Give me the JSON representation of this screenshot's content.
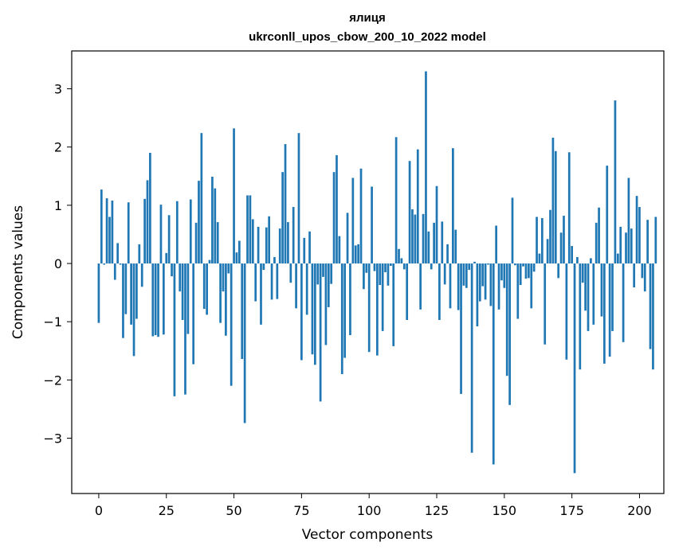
{
  "chart_data": {
    "type": "bar",
    "title": "ялиця",
    "subtitle": "ukrconll_upos_cbow_200_10_2022 model",
    "xlabel": "Vector components",
    "ylabel": "Components values",
    "xlim": [
      -10,
      209
    ],
    "ylim": [
      -3.95,
      3.65
    ],
    "xticks": [
      0,
      25,
      50,
      75,
      100,
      125,
      150,
      175,
      200
    ],
    "yticks": [
      -3,
      -2,
      -1,
      0,
      1,
      2,
      3
    ],
    "grid": false,
    "bar_color": "#1f77b4",
    "values": [
      -1.02,
      1.27,
      -0.02,
      1.12,
      0.8,
      1.08,
      -0.28,
      0.35,
      -0.02,
      -1.28,
      -0.87,
      1.05,
      -1.05,
      -1.59,
      -0.95,
      0.33,
      -0.4,
      1.11,
      1.43,
      1.9,
      -1.25,
      -1.23,
      -1.26,
      1.01,
      -1.22,
      0.18,
      0.83,
      -0.22,
      -2.28,
      1.07,
      -0.48,
      -0.97,
      -2.25,
      -1.21,
      1.1,
      -1.73,
      0.7,
      1.42,
      2.24,
      -0.78,
      -0.88,
      0.06,
      1.49,
      1.29,
      0.71,
      -1.02,
      -0.48,
      -1.24,
      -0.17,
      -2.1,
      2.32,
      0.19,
      0.39,
      -1.64,
      -2.74,
      1.17,
      1.17,
      0.76,
      -0.65,
      0.63,
      -1.05,
      -0.11,
      0.62,
      0.81,
      -0.62,
      0.11,
      -0.61,
      0.6,
      1.57,
      2.05,
      0.71,
      -0.33,
      0.97,
      -0.77,
      2.24,
      -1.66,
      0.44,
      -0.88,
      0.55,
      -1.56,
      -1.74,
      -0.36,
      -2.37,
      -0.23,
      -1.4,
      -0.75,
      -0.35,
      1.57,
      1.86,
      0.47,
      -1.9,
      -1.62,
      0.87,
      -1.23,
      1.47,
      0.31,
      0.33,
      1.63,
      -0.44,
      -0.16,
      -1.52,
      1.32,
      -0.13,
      -1.58,
      -0.37,
      -1.16,
      -0.15,
      -0.38,
      -0.04,
      -1.42,
      2.17,
      0.25,
      0.09,
      -0.1,
      -0.97,
      1.76,
      0.93,
      0.84,
      1.96,
      -0.79,
      0.85,
      3.3,
      0.55,
      -0.1,
      0.7,
      1.33,
      -0.97,
      0.72,
      -0.36,
      0.33,
      -0.77,
      1.98,
      0.58,
      -0.8,
      -2.24,
      -0.38,
      -0.42,
      -0.11,
      -3.25,
      0.03,
      -1.08,
      -0.65,
      -0.39,
      -0.62,
      -0.02,
      -0.73,
      -3.45,
      0.65,
      -0.79,
      -0.29,
      -0.42,
      -1.93,
      -2.43,
      1.13,
      -0.03,
      -0.95,
      -0.37,
      -0.05,
      -0.26,
      -0.25,
      -0.77,
      -0.14,
      0.8,
      0.17,
      0.78,
      -1.39,
      0.42,
      0.92,
      2.16,
      1.93,
      -0.25,
      0.53,
      0.82,
      -1.65,
      1.91,
      0.3,
      -3.6,
      0.11,
      -1.82,
      -0.33,
      -0.81,
      -1.16,
      0.09,
      -1.05,
      0.7,
      0.96,
      -0.91,
      -1.72,
      1.68,
      -1.6,
      -1.16,
      2.8,
      0.17,
      0.63,
      -1.35,
      0.53,
      1.47,
      0.6,
      -0.41,
      1.16,
      0.97,
      -0.25,
      -0.48,
      0.75,
      -1.47,
      -1.82,
      0.8
    ]
  }
}
